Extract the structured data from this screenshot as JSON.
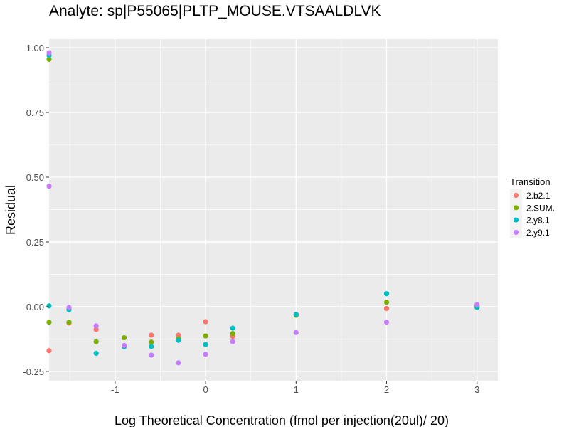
{
  "chart_data": {
    "type": "scatter",
    "title": "Analyte: sp|P55065|PLTP_MOUSE.VTSAALDLVK",
    "xlabel": "Log Theoretical Concentration (fmol per injection(20ul)/ 20)",
    "ylabel": "Residual",
    "xlim": [
      -1.73,
      3.23
    ],
    "ylim": [
      -0.286,
      1.033
    ],
    "x_ticks": [
      -1,
      0,
      1,
      2,
      3
    ],
    "x_tick_labels": [
      "-1",
      "0",
      "1",
      "2",
      "3"
    ],
    "y_ticks": [
      1.0,
      0.75,
      0.5,
      0.25,
      0.0,
      -0.25
    ],
    "y_tick_labels": [
      "1.00",
      "0.75",
      "0.50",
      "0.25",
      "0.00",
      "-0.25"
    ],
    "grid": true,
    "legend": {
      "title": "Transition",
      "placement": "right"
    },
    "series": [
      {
        "name": "2.b2.1",
        "color": "#F8766D",
        "points": [
          [
            -1.73,
            -0.17
          ],
          [
            -1.51,
            -0.063
          ],
          [
            -1.21,
            -0.088
          ],
          [
            -0.6,
            -0.11
          ],
          [
            -0.3,
            -0.11
          ],
          [
            0,
            -0.058
          ],
          [
            0.3,
            -0.115
          ],
          [
            1,
            -0.03
          ],
          [
            2,
            -0.007
          ],
          [
            3,
            0.005
          ]
        ]
      },
      {
        "name": "2.SUM.",
        "color": "#7CAE00",
        "points": [
          [
            -1.73,
            0.955
          ],
          [
            -1.73,
            -0.06
          ],
          [
            -1.51,
            -0.06
          ],
          [
            -1.21,
            -0.135
          ],
          [
            -0.9,
            -0.12
          ],
          [
            -0.6,
            -0.137
          ],
          [
            -0.3,
            -0.124
          ],
          [
            0,
            -0.113
          ],
          [
            0.3,
            -0.104
          ],
          [
            1,
            -0.033
          ],
          [
            2,
            0.017
          ],
          [
            3,
            0.002
          ]
        ]
      },
      {
        "name": "2.y8.1",
        "color": "#00BFC4",
        "points": [
          [
            -1.73,
            0.97
          ],
          [
            -1.73,
            0.003
          ],
          [
            -1.51,
            -0.012
          ],
          [
            -1.21,
            -0.18
          ],
          [
            -0.9,
            -0.155
          ],
          [
            -0.6,
            -0.154
          ],
          [
            -0.3,
            -0.13
          ],
          [
            0,
            -0.146
          ],
          [
            0.3,
            -0.083
          ],
          [
            1,
            -0.03
          ],
          [
            2,
            0.05
          ],
          [
            3,
            -0.003
          ]
        ]
      },
      {
        "name": "2.y9.1",
        "color": "#C77CFF",
        "points": [
          [
            -1.73,
            0.98
          ],
          [
            -1.73,
            0.465
          ],
          [
            -1.51,
            -0.003
          ],
          [
            -1.21,
            -0.074
          ],
          [
            -0.9,
            -0.15
          ],
          [
            -0.6,
            -0.187
          ],
          [
            -0.3,
            -0.217
          ],
          [
            0,
            -0.184
          ],
          [
            0.3,
            -0.135
          ],
          [
            1,
            -0.1
          ],
          [
            2,
            -0.06
          ],
          [
            3,
            0.008
          ]
        ]
      }
    ]
  }
}
